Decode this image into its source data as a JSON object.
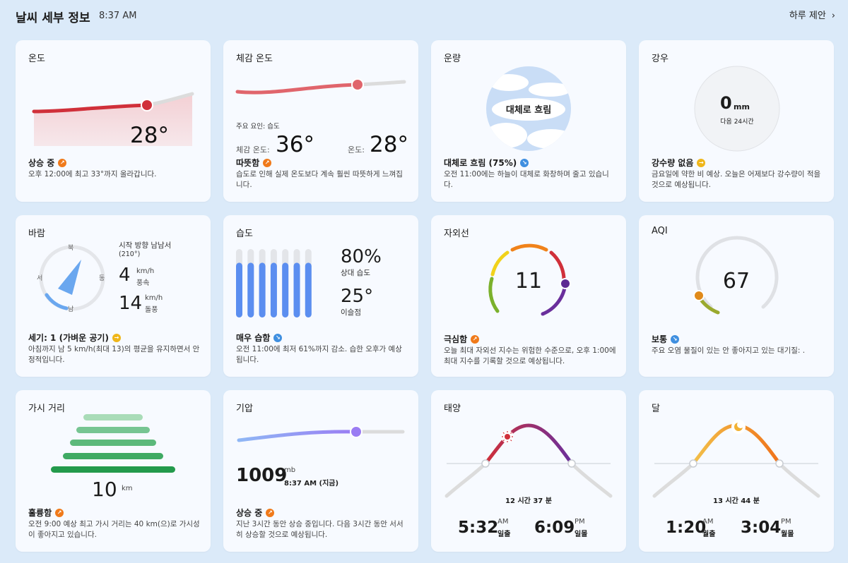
{
  "header": {
    "title": "날씨 세부 정보",
    "time": "8:37 AM",
    "daily_link": "하루 제안",
    "chevron": "›"
  },
  "temperature": {
    "title": "온도",
    "value": "28°",
    "status": "상승 중",
    "desc": "오후 12:00에 최고 33°까지 올라갑니다.",
    "accent": "#d0303a"
  },
  "feels_like": {
    "title": "체감 온도",
    "factor": "주요 요인: 습도",
    "feels_label": "체감 온도:",
    "feels_value": "36°",
    "temp_label": "온도:",
    "temp_value": "28°",
    "status": "따뜻함",
    "desc": "습도로 인해 실제 온도보다 계속 훨씬 따뜻하게 느껴집니다.",
    "accent": "#e0656c"
  },
  "cloud": {
    "title": "운량",
    "circle_label": "대체로 흐림",
    "status": "대체로 흐림 (75%)",
    "desc": "오전 11:00에는 하늘이 대체로 화창하며 줄고 있습니다.",
    "cover_percent": 75
  },
  "precip": {
    "title": "강우",
    "value": "0",
    "unit": "mm",
    "period": "다음 24시간",
    "status": "강수량 없음",
    "desc": "금요일에 약한 비 예상. 오늘은 어제보다 강수량이 적을 것으로 예상됩니다."
  },
  "wind": {
    "title": "바람",
    "dir_n": "북",
    "dir_s": "남",
    "dir_e": "동",
    "dir_w": "서",
    "from_text": "시작 방향 남남서",
    "degree": "(210°)",
    "speed": "4",
    "speed_unit": "km/h",
    "speed_label": "풍속",
    "gust": "14",
    "gust_unit": "km/h",
    "gust_label": "돌풍",
    "status": "세기: 1 (가벼운 공기)",
    "desc": "아침까지 남 5 km/h(최대 13)의 평균을 유지하면서 안정적입니다."
  },
  "humidity": {
    "title": "습도",
    "value": "80%",
    "value_label": "상대 습도",
    "dew": "25°",
    "dew_label": "이슬점",
    "status": "매우 습함",
    "desc": "오전 11:00에 최저 61%까지 감소. 습한 오후가 예상됩니다.",
    "bar_fill_percent": 80,
    "accent": "#5b8ef0"
  },
  "uv": {
    "title": "자외선",
    "value": "11",
    "status": "극심함",
    "desc": "오늘 최대 자외선 지수는 위험한 수준으로, 오후 1:00에 최대 지수를 기록할 것으로 예상됩니다."
  },
  "aqi": {
    "title": "AQI",
    "value": "67",
    "status": "보통",
    "desc": "주요 오염 물질이 있는 안 좋아지고 있는 대기질: ."
  },
  "visibility": {
    "title": "가시 거리",
    "value": "10",
    "unit": "km",
    "status": "훌륭함",
    "desc": "오전 9:00 예상 최고 가시 거리는 40 km(으)로 가시성이 좋아지고 있습니다."
  },
  "pressure": {
    "title": "기압",
    "value": "1009",
    "unit": "mb",
    "time": "8:37 AM (지금)",
    "status": "상승 중",
    "desc": "지난 3시간 동안 상승 중입니다. 다음 3시간 동안 서서히 상승할 것으로 예상됩니다.",
    "accent": "#9a7cf3"
  },
  "sun": {
    "title": "태양",
    "duration": "12 시간 37 분",
    "rise": "5:32",
    "rise_ampm": "AM",
    "rise_label": "일출",
    "set": "6:09",
    "set_ampm": "PM",
    "set_label": "일몰"
  },
  "moon": {
    "title": "달",
    "duration": "13 시간 44 분",
    "rise": "1:20",
    "rise_ampm": "AM",
    "rise_label": "월출",
    "set": "3:04",
    "set_ampm": "PM",
    "set_label": "월몰"
  }
}
